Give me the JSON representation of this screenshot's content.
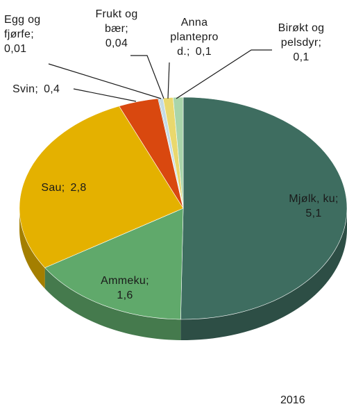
{
  "chart_data": {
    "type": "pie",
    "categories": [
      "Mjølk, ku;",
      "Ammeku;",
      "Sau;",
      "Svin;",
      "Egg og\nfjørfe;",
      "Frukt og\nbær;",
      "Anna\nplantepro\nd.;",
      "Birøkt og\npelsdyr;"
    ],
    "values": [
      5.1,
      1.6,
      2.8,
      0.4,
      0.01,
      0.04,
      0.1,
      0.1
    ],
    "value_labels": [
      "5,1",
      "1,6",
      "2,8",
      "0,4",
      "0,01",
      "0,04",
      "0,1",
      "0,1"
    ],
    "colors": [
      "#3e6d60",
      "#60a96b",
      "#e4b100",
      "#d9480f",
      "#8fb3c4",
      "#c4dbe4",
      "#e9d86e",
      "#a9d5aa"
    ],
    "annotation": "2016"
  }
}
